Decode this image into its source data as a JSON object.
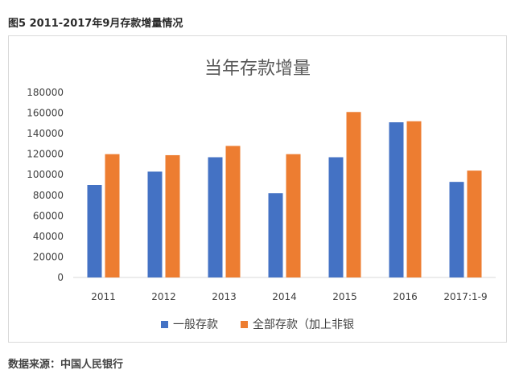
{
  "caption": "图5 2011-2017年9月存款增量情况",
  "source": "数据来源：中国人民银行",
  "chart_data": {
    "type": "bar",
    "title": "当年存款增量",
    "categories": [
      "2011",
      "2012",
      "2013",
      "2014",
      "2015",
      "2016",
      "2017:1-9"
    ],
    "series": [
      {
        "name": "一般存款",
        "color": "#4472c4",
        "values": [
          90000,
          103000,
          117000,
          82000,
          117000,
          151000,
          93000
        ]
      },
      {
        "name": "全部存款（加上非银",
        "color": "#ed7d31",
        "values": [
          120000,
          119000,
          128000,
          120000,
          161000,
          152000,
          104000
        ]
      }
    ],
    "ylim": [
      0,
      180000
    ],
    "yticks": [
      0,
      20000,
      40000,
      60000,
      80000,
      100000,
      120000,
      140000,
      160000,
      180000
    ],
    "grid": false,
    "legend_position": "bottom"
  }
}
